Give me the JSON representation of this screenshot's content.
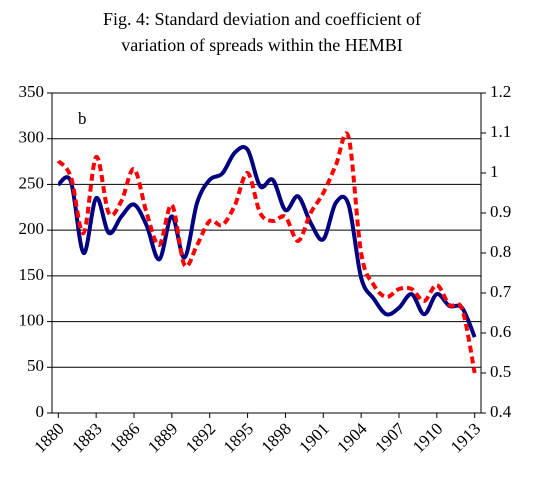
{
  "chart_data": {
    "type": "line",
    "title_lines": [
      "Fig. 4: Standard deviation and coefficient of",
      "variation of spreads within the HEMBI"
    ],
    "annotation": "b",
    "x": [
      1880,
      1881,
      1882,
      1883,
      1884,
      1885,
      1886,
      1887,
      1888,
      1889,
      1890,
      1891,
      1892,
      1893,
      1894,
      1895,
      1896,
      1897,
      1898,
      1899,
      1900,
      1901,
      1902,
      1903,
      1904,
      1905,
      1906,
      1907,
      1908,
      1909,
      1910,
      1911,
      1912,
      1913
    ],
    "xlim": [
      1879.5,
      1913.5
    ],
    "xticks": [
      1880,
      1883,
      1886,
      1889,
      1892,
      1895,
      1898,
      1901,
      1904,
      1907,
      1910,
      1913
    ],
    "ylim": [
      0,
      350
    ],
    "yticks": [
      0,
      50,
      100,
      150,
      200,
      250,
      300,
      350
    ],
    "y2lim": [
      0.4,
      1.2
    ],
    "y2ticks": [
      0.4,
      0.5,
      0.6,
      0.7,
      0.8,
      0.9,
      1.0,
      1.1,
      1.2
    ],
    "grid": true,
    "series": [
      {
        "color": "#000080",
        "dashed": false,
        "values": [
          250,
          253,
          175,
          235,
          197,
          215,
          228,
          205,
          168,
          215,
          170,
          230,
          255,
          262,
          285,
          288,
          248,
          255,
          222,
          237,
          208,
          190,
          230,
          228,
          148,
          125,
          108,
          115,
          130,
          108,
          130,
          117,
          115,
          83
        ]
      },
      {
        "color": "#ff0000",
        "dashed": true,
        "axis": "y2",
        "values": [
          1.03,
          0.99,
          0.85,
          1.04,
          0.9,
          0.93,
          1.01,
          0.9,
          0.82,
          0.92,
          0.77,
          0.82,
          0.88,
          0.87,
          0.92,
          1.0,
          0.9,
          0.88,
          0.89,
          0.83,
          0.9,
          0.95,
          1.02,
          1.09,
          0.8,
          0.72,
          0.69,
          0.71,
          0.71,
          0.68,
          0.72,
          0.67,
          0.66,
          0.5
        ]
      }
    ]
  }
}
